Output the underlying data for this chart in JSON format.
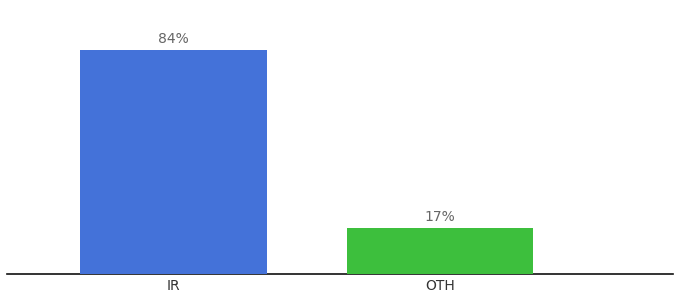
{
  "categories": [
    "IR",
    "OTH"
  ],
  "values": [
    84,
    17
  ],
  "bar_colors": [
    "#4472D9",
    "#3DBF3D"
  ],
  "bar_labels": [
    "84%",
    "17%"
  ],
  "background_color": "#ffffff",
  "ylim": [
    0,
    100
  ],
  "label_fontsize": 10,
  "tick_fontsize": 10,
  "label_color": "#666666",
  "bar_positions": [
    0.25,
    0.65
  ],
  "bar_width": 0.28,
  "xlim": [
    0,
    1.0
  ]
}
